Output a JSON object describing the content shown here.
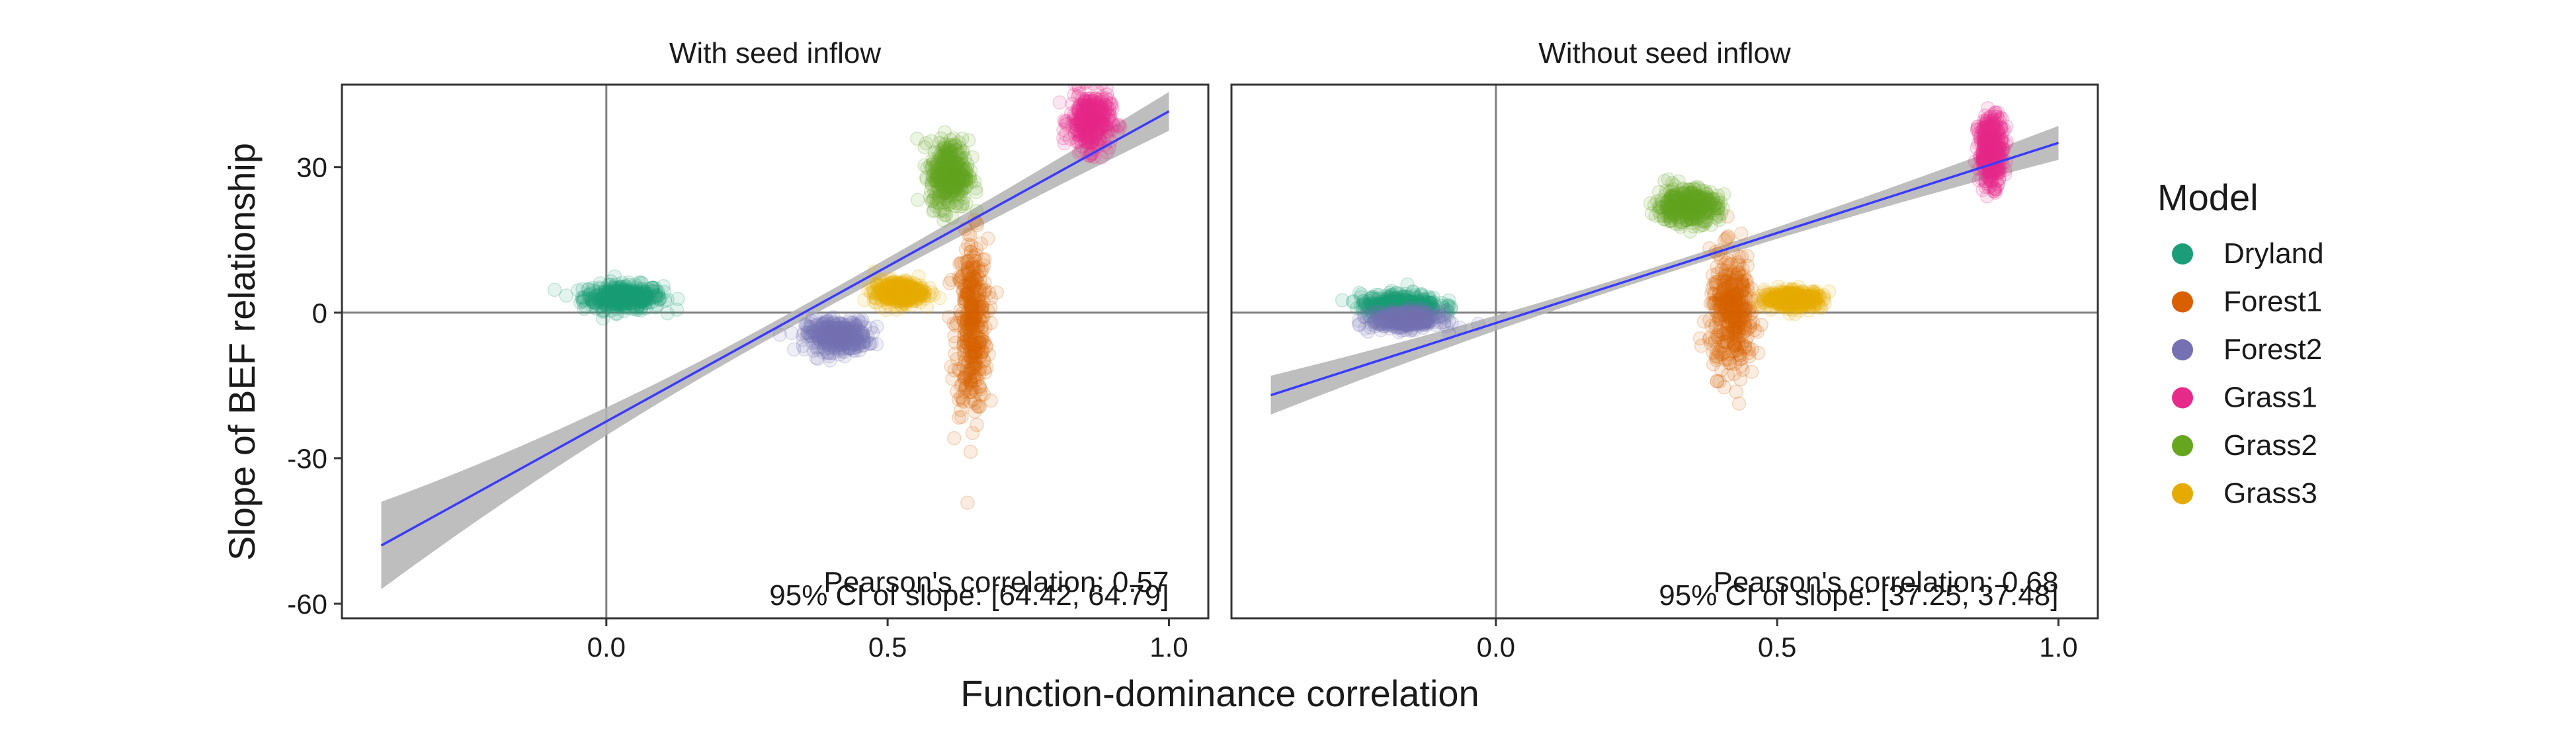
{
  "chart_data": {
    "type": "scatter",
    "xlabel": "Function-dominance correlation",
    "ylabel": "Slope of BEF relationship",
    "xlim": [
      -0.47,
      1.07
    ],
    "ylim": [
      -63,
      47
    ],
    "x_ticks": [
      0.0,
      0.5,
      1.0
    ],
    "x_tick_labels": [
      "0.0",
      "0.5",
      "1.0"
    ],
    "y_ticks": [
      -60,
      -30,
      0,
      30
    ],
    "y_tick_labels": [
      "-60",
      "-30",
      "0",
      "30"
    ],
    "grid": false,
    "reference_lines": {
      "x": 0,
      "y": 0
    },
    "legend": {
      "title": "Model",
      "position": "right",
      "entries": [
        {
          "name": "Dryland",
          "color": "#1b9e77"
        },
        {
          "name": "Forest1",
          "color": "#d95f02"
        },
        {
          "name": "Forest2",
          "color": "#7570b3"
        },
        {
          "name": "Grass1",
          "color": "#e7298a"
        },
        {
          "name": "Grass2",
          "color": "#66a61e"
        },
        {
          "name": "Grass3",
          "color": "#e6ab02"
        }
      ]
    },
    "panels": [
      {
        "title": "With seed inflow",
        "annotation_lines": [
          "Pearson's correlation: 0.57",
          "95% CI of slope: [64.42, 64.79]"
        ],
        "fit": {
          "x": [
            -0.4,
            1.0
          ],
          "y": [
            -48,
            41.5
          ],
          "ci_halfwidth_start": 9,
          "ci_halfwidth_mid": 1.5,
          "ci_halfwidth_end": 4
        },
        "clusters": [
          {
            "name": "Dryland",
            "x": 0.03,
            "y": 3.2,
            "sx": 0.035,
            "sy": 1.3
          },
          {
            "name": "Forest1",
            "x": 0.65,
            "y": -3,
            "sx": 0.014,
            "sy": 9
          },
          {
            "name": "Forest2",
            "x": 0.41,
            "y": -4.8,
            "sx": 0.027,
            "sy": 1.6
          },
          {
            "name": "Grass1",
            "x": 0.86,
            "y": 39.5,
            "sx": 0.018,
            "sy": 3
          },
          {
            "name": "Grass2",
            "x": 0.61,
            "y": 28.5,
            "sx": 0.017,
            "sy": 3.5
          },
          {
            "name": "Grass3",
            "x": 0.52,
            "y": 4.2,
            "sx": 0.022,
            "sy": 1.2
          }
        ]
      },
      {
        "title": "Without seed inflow",
        "annotation_lines": [
          "Pearson's correlation: 0.68",
          "95% CI of slope: [37.25, 37.48]"
        ],
        "fit": {
          "x": [
            -0.4,
            1.0
          ],
          "y": [
            -17,
            35
          ],
          "ci_halfwidth_start": 4,
          "ci_halfwidth_mid": 1,
          "ci_halfwidth_end": 3.5
        },
        "clusters": [
          {
            "name": "Dryland",
            "x": -0.17,
            "y": 1.5,
            "sx": 0.035,
            "sy": 1.2
          },
          {
            "name": "Forest1",
            "x": 0.42,
            "y": 0,
            "sx": 0.02,
            "sy": 6
          },
          {
            "name": "Forest2",
            "x": -0.16,
            "y": -1.5,
            "sx": 0.03,
            "sy": 0.9
          },
          {
            "name": "Grass1",
            "x": 0.88,
            "y": 33.5,
            "sx": 0.011,
            "sy": 3.5
          },
          {
            "name": "Grass2",
            "x": 0.34,
            "y": 22,
            "sx": 0.027,
            "sy": 1.8
          },
          {
            "name": "Grass3",
            "x": 0.53,
            "y": 2.8,
            "sx": 0.025,
            "sy": 0.9
          }
        ]
      }
    ]
  }
}
